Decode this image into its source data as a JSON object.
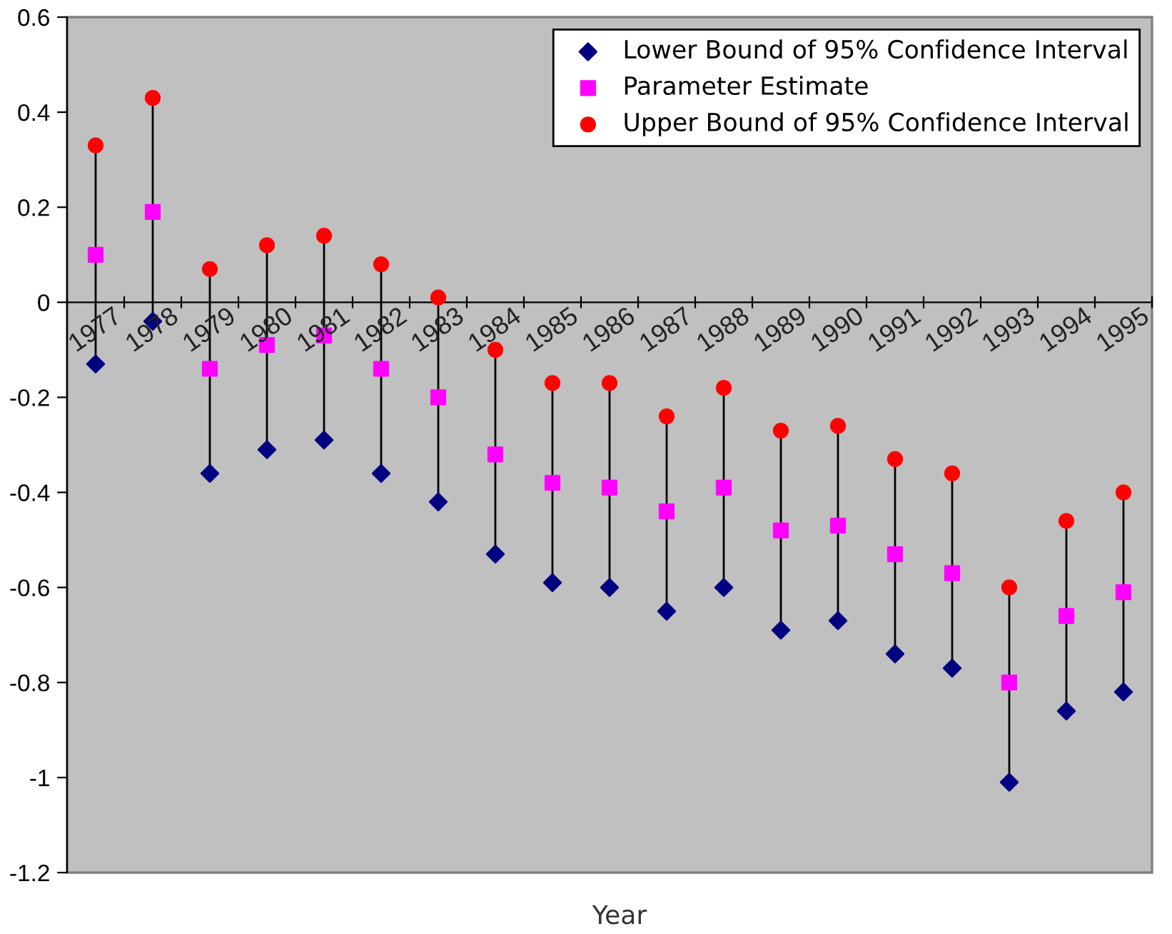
{
  "chart_data": {
    "type": "scatter",
    "xlabel": "Year",
    "categories": [
      "1977",
      "1978",
      "1979",
      "1980",
      "1981",
      "1982",
      "1983",
      "1984",
      "1985",
      "1986",
      "1987",
      "1988",
      "1989",
      "1990",
      "1991",
      "1992",
      "1993",
      "1994",
      "1995"
    ],
    "series": [
      {
        "name": "Lower Bound of 95% Confidence Interval",
        "color": "#000080",
        "marker": "diamond",
        "values": [
          -0.13,
          -0.04,
          -0.36,
          -0.31,
          -0.29,
          -0.36,
          -0.42,
          -0.53,
          -0.59,
          -0.6,
          -0.65,
          -0.6,
          -0.69,
          -0.67,
          -0.74,
          -0.77,
          -1.01,
          -0.86,
          -0.82
        ]
      },
      {
        "name": "Parameter Estimate",
        "color": "#ff00ff",
        "marker": "square",
        "values": [
          0.1,
          0.19,
          -0.14,
          -0.09,
          -0.07,
          -0.14,
          -0.2,
          -0.32,
          -0.38,
          -0.39,
          -0.44,
          -0.39,
          -0.48,
          -0.47,
          -0.53,
          -0.57,
          -0.8,
          -0.66,
          -0.61
        ]
      },
      {
        "name": "Upper Bound of 95% Confidence Interval",
        "color": "#ff0000",
        "marker": "circle",
        "values": [
          0.33,
          0.43,
          0.07,
          0.12,
          0.14,
          0.08,
          0.01,
          -0.1,
          -0.17,
          -0.17,
          -0.24,
          -0.18,
          -0.27,
          -0.26,
          -0.33,
          -0.36,
          -0.6,
          -0.46,
          -0.4
        ]
      }
    ],
    "ylim": [
      -1.2,
      0.6
    ],
    "yticks": [
      -1.2,
      -1,
      -0.8,
      -0.6,
      -0.4,
      -0.2,
      0,
      0.2,
      0.4,
      0.6
    ],
    "grid": false,
    "legend": "top right"
  }
}
